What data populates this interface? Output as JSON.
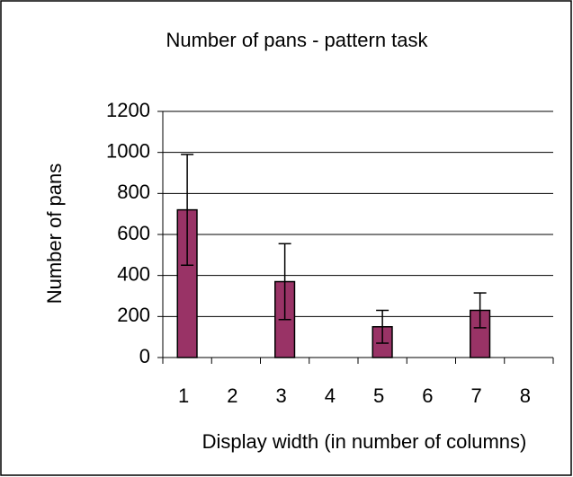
{
  "chart_data": {
    "type": "bar",
    "title": "Number of pans - pattern task",
    "x_label": "Display width (in number of columns)",
    "y_label": "Number of pans",
    "categories": [
      "1",
      "2",
      "3",
      "4",
      "5",
      "6",
      "7",
      "8"
    ],
    "values": [
      720,
      null,
      370,
      null,
      150,
      null,
      230,
      null
    ],
    "errors": [
      270,
      null,
      185,
      null,
      80,
      null,
      85,
      null
    ],
    "color": "#993366",
    "ylim": [
      0,
      1200
    ],
    "yticks": [
      0,
      200,
      400,
      600,
      800,
      1000,
      1200
    ],
    "grid": true
  }
}
